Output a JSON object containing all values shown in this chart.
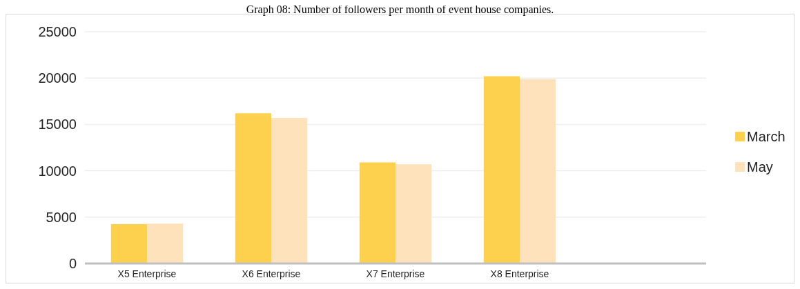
{
  "chart_data": {
    "type": "bar",
    "title": "Graph 08: Number of followers per month of event house companies.",
    "categories": [
      "X5 Enterprise",
      "X6 Enterprise",
      "X7 Enterprise",
      "X8 Enterprise",
      null
    ],
    "series": [
      {
        "name": "March",
        "color": "#fdd14e",
        "values": [
          4250,
          16200,
          10900,
          20200,
          null
        ]
      },
      {
        "name": "May",
        "color": "#fde2bc",
        "values": [
          4300,
          15700,
          10700,
          19900,
          null
        ]
      }
    ],
    "ylim": [
      0,
      25000
    ],
    "yticks": [
      0,
      5000,
      10000,
      15000,
      20000,
      25000
    ],
    "grid": "y",
    "legend": "right"
  }
}
